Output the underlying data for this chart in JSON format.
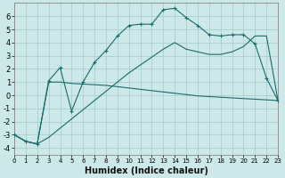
{
  "xlabel": "Humidex (Indice chaleur)",
  "background_color": "#cce8e8",
  "grid_color": "#aacfcf",
  "line_color": "#1a6b6b",
  "x": [
    0,
    1,
    2,
    3,
    4,
    5,
    6,
    7,
    8,
    9,
    10,
    11,
    12,
    13,
    14,
    15,
    16,
    17,
    18,
    19,
    20,
    21,
    22,
    23
  ],
  "line1_y": [
    -3.0,
    -3.5,
    -3.7,
    1.1,
    2.1,
    -1.2,
    1.0,
    2.5,
    3.4,
    4.5,
    5.3,
    5.4,
    5.4,
    6.5,
    6.6,
    5.9,
    5.3,
    4.6,
    4.5,
    4.6,
    4.6,
    3.9,
    1.3,
    -0.4
  ],
  "line2_y": [
    -3.0,
    -3.5,
    -3.7,
    1.0,
    1.0,
    0.9,
    0.85,
    0.8,
    0.75,
    0.65,
    0.55,
    0.45,
    0.35,
    0.25,
    0.15,
    0.05,
    -0.05,
    -0.1,
    -0.15,
    -0.2,
    -0.25,
    -0.3,
    -0.35,
    -0.4
  ],
  "line3_y": [
    -3.0,
    -3.5,
    -3.7,
    -3.2,
    -2.5,
    -1.8,
    -1.1,
    -0.4,
    0.3,
    1.0,
    1.7,
    2.3,
    2.9,
    3.5,
    4.0,
    3.5,
    3.3,
    3.1,
    3.1,
    3.3,
    3.7,
    4.5,
    4.5,
    -0.4
  ],
  "xlim": [
    0,
    23
  ],
  "ylim": [
    -4.5,
    7.0
  ],
  "yticks": [
    -4,
    -3,
    -2,
    -1,
    0,
    1,
    2,
    3,
    4,
    5,
    6
  ],
  "xticks": [
    0,
    1,
    2,
    3,
    4,
    5,
    6,
    7,
    8,
    9,
    10,
    11,
    12,
    13,
    14,
    15,
    16,
    17,
    18,
    19,
    20,
    21,
    22,
    23
  ]
}
